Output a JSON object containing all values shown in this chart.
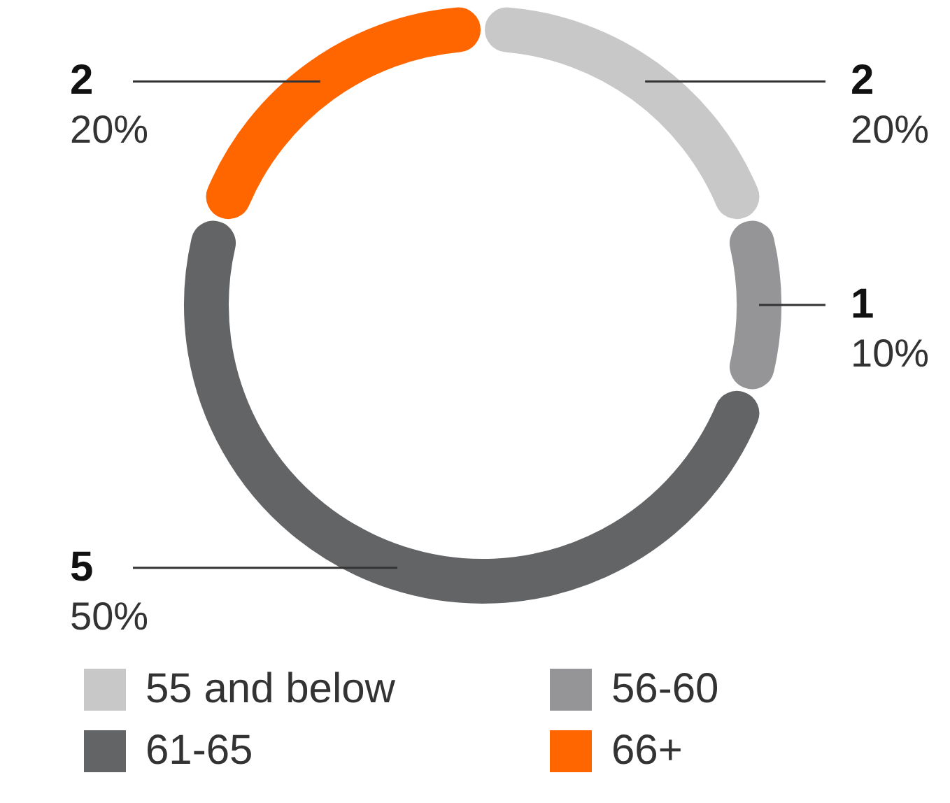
{
  "chart_data": {
    "type": "donut",
    "categories": [
      "55 and below",
      "56-60",
      "61-65",
      "66+"
    ],
    "values": [
      20,
      10,
      50,
      20
    ],
    "colors": [
      "#c8c8c9",
      "#959598",
      "#636466",
      "#ff6600"
    ],
    "value_labels": [
      "2\n20%",
      "1\n10%",
      "5\n50%",
      "2\n20%"
    ],
    "legend": "bottom"
  }
}
